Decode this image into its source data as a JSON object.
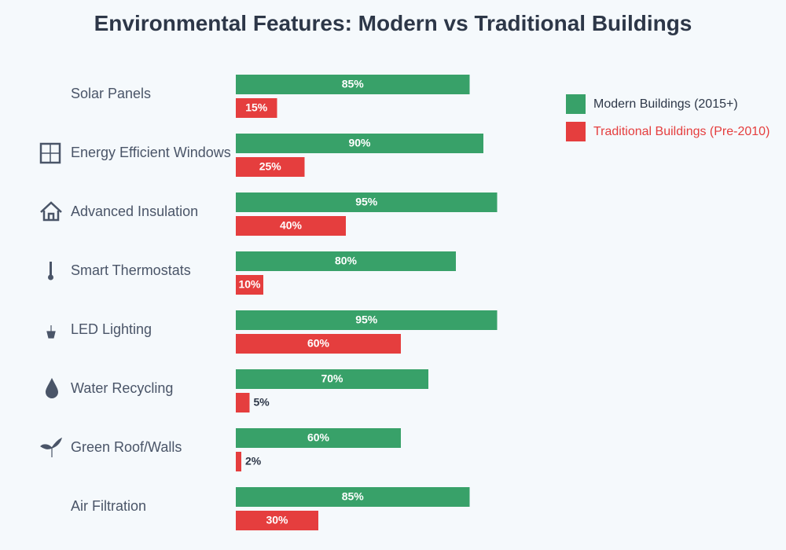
{
  "title": "Environmental Features: Modern vs Traditional Buildings",
  "colors": {
    "modern": "#38a169",
    "traditional": "#e53e3e"
  },
  "legend": {
    "modern": "Modern Buildings (2015+)",
    "traditional": "Traditional Buildings (Pre-2010)"
  },
  "chart_data": {
    "type": "bar",
    "orientation": "horizontal",
    "title": "Environmental Features: Modern vs Traditional Buildings",
    "categories": [
      "Solar Panels",
      "Energy Efficient Windows",
      "Advanced Insulation",
      "Smart Thermostats",
      "LED Lighting",
      "Water Recycling",
      "Green Roof/Walls",
      "Air Filtration"
    ],
    "icons": [
      "",
      "window-icon",
      "house-icon",
      "thermometer-icon",
      "plant-pot-icon",
      "droplet-icon",
      "seedling-icon",
      ""
    ],
    "series": [
      {
        "name": "Modern Buildings (2015+)",
        "values": [
          85,
          90,
          95,
          80,
          95,
          70,
          60,
          85
        ]
      },
      {
        "name": "Traditional Buildings (Pre-2010)",
        "values": [
          15,
          25,
          40,
          10,
          60,
          5,
          2,
          30
        ]
      }
    ],
    "unit": "%",
    "xlim": [
      0,
      100
    ],
    "legend_position": "top-right",
    "grid": false
  }
}
